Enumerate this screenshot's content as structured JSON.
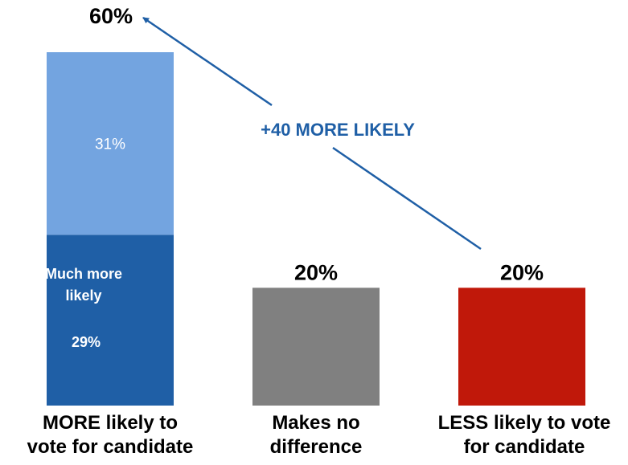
{
  "chart_data": {
    "type": "bar",
    "stacked": true,
    "categories": [
      [
        "MORE likely to",
        "vote for candidate"
      ],
      [
        "Makes no",
        "difference"
      ],
      [
        "LESS likely to vote",
        "for candidate"
      ]
    ],
    "segments": [
      [
        {
          "name": "Much more likely",
          "value": 29,
          "label": "29%",
          "color": "#1F5FA6"
        },
        {
          "name": "",
          "value": 31,
          "label": "31%",
          "color": "#73A4E0"
        }
      ],
      [
        {
          "name": "",
          "value": 20,
          "label": "",
          "color": "#808080"
        }
      ],
      [
        {
          "name": "",
          "value": 20,
          "label": "",
          "color": "#C0180A"
        }
      ]
    ],
    "totals": [
      {
        "value": 60,
        "label": "60%"
      },
      {
        "value": 20,
        "label": "20%"
      },
      {
        "value": 20,
        "label": "20%"
      }
    ],
    "ylim": [
      0,
      60
    ],
    "grid": false,
    "annotation": {
      "text": "+40 MORE LIKELY",
      "from_category": 2,
      "to_category": 0,
      "color": "#1F5FA6"
    },
    "segment_inner_labels": {
      "much_more_likely": [
        "Much more",
        "likely"
      ]
    }
  }
}
